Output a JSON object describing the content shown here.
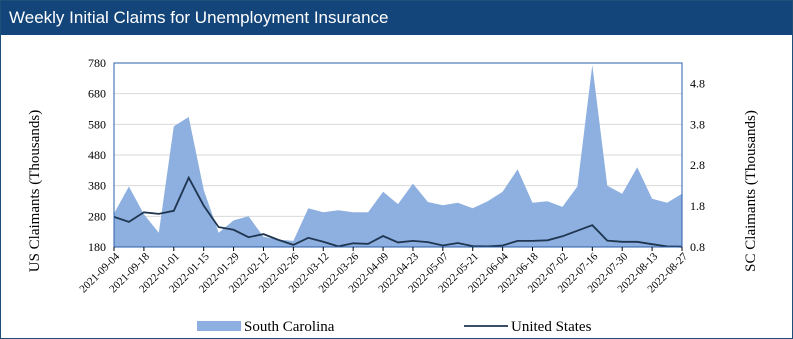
{
  "title": "Weekly Initial Claims for Unemployment Insurance",
  "colors": {
    "title_bar": "#14457a",
    "title_text": "#ffffff",
    "area_fill": "#8db0e0",
    "line": "#1f3550",
    "plot_border": "#2a5da8",
    "grid": "#d9d9d9"
  },
  "chart_data": {
    "type": "area",
    "title": "Weekly Initial Claims for Unemployment Insurance",
    "ylabel": "US Claimants (Thousands)",
    "y2label": "SC Claimants (Thousands)",
    "ylim": [
      180,
      780
    ],
    "y2lim": [
      0.8,
      5.3
    ],
    "yticks": [
      "780",
      "680",
      "580",
      "480",
      "380",
      "280",
      "180"
    ],
    "y2ticks": [
      "4.8",
      "3.8",
      "2.8",
      "1.8",
      "0.8"
    ],
    "xticklabels": [
      "2021-09-04",
      "2021-09-18",
      "2022-01-01",
      "2022-01-15",
      "2022-01-29",
      "2022-02-12",
      "2022-02-26",
      "2022-03-12",
      "2022-03-26",
      "2022-04-09",
      "2022-04-23",
      "2022-05-07",
      "2022-05-21",
      "2022-06-04",
      "2022-06-18",
      "2022-07-02",
      "2022-07-16",
      "2022-07-30",
      "2022-08-13",
      "2022-08-27"
    ],
    "grid": true,
    "legend_position": "bottom",
    "series": [
      {
        "name": "South Carolina",
        "type": "area",
        "axis": "right",
        "values": [
          1.62,
          2.28,
          1.6,
          1.15,
          3.75,
          3.98,
          2.2,
          1.15,
          1.45,
          1.55,
          1.05,
          0.98,
          0.95,
          1.75,
          1.65,
          1.7,
          1.65,
          1.65,
          2.15,
          1.85,
          2.35,
          1.9,
          1.82,
          1.88,
          1.75,
          1.92,
          2.15,
          2.7,
          1.88,
          1.92,
          1.78,
          2.28,
          5.25,
          2.3,
          2.1,
          2.75,
          1.98,
          1.88,
          2.1
        ]
      },
      {
        "name": "United States",
        "type": "line",
        "axis": "left",
        "values": [
          278,
          262,
          293,
          288,
          298,
          406,
          315,
          245,
          236,
          212,
          222,
          203,
          187,
          210,
          197,
          182,
          192,
          190,
          216,
          195,
          200,
          196,
          185,
          193,
          183,
          182,
          185,
          200,
          200,
          202,
          215,
          233,
          251,
          201,
          197,
          197,
          189,
          182,
          181
        ]
      }
    ]
  }
}
